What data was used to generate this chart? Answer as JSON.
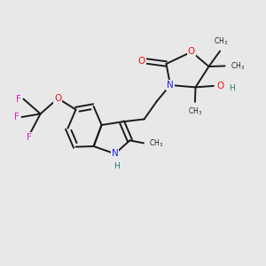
{
  "bg_color": "#e8e8e8",
  "bond_color": "#1a1a1a",
  "bond_lw": 1.4,
  "atom_colors": {
    "O": "#ee1111",
    "N": "#2222ee",
    "F": "#dd11bb",
    "H": "#227777",
    "C": "#1a1a1a"
  },
  "xlim": [
    0,
    10
  ],
  "ylim": [
    0,
    10
  ]
}
